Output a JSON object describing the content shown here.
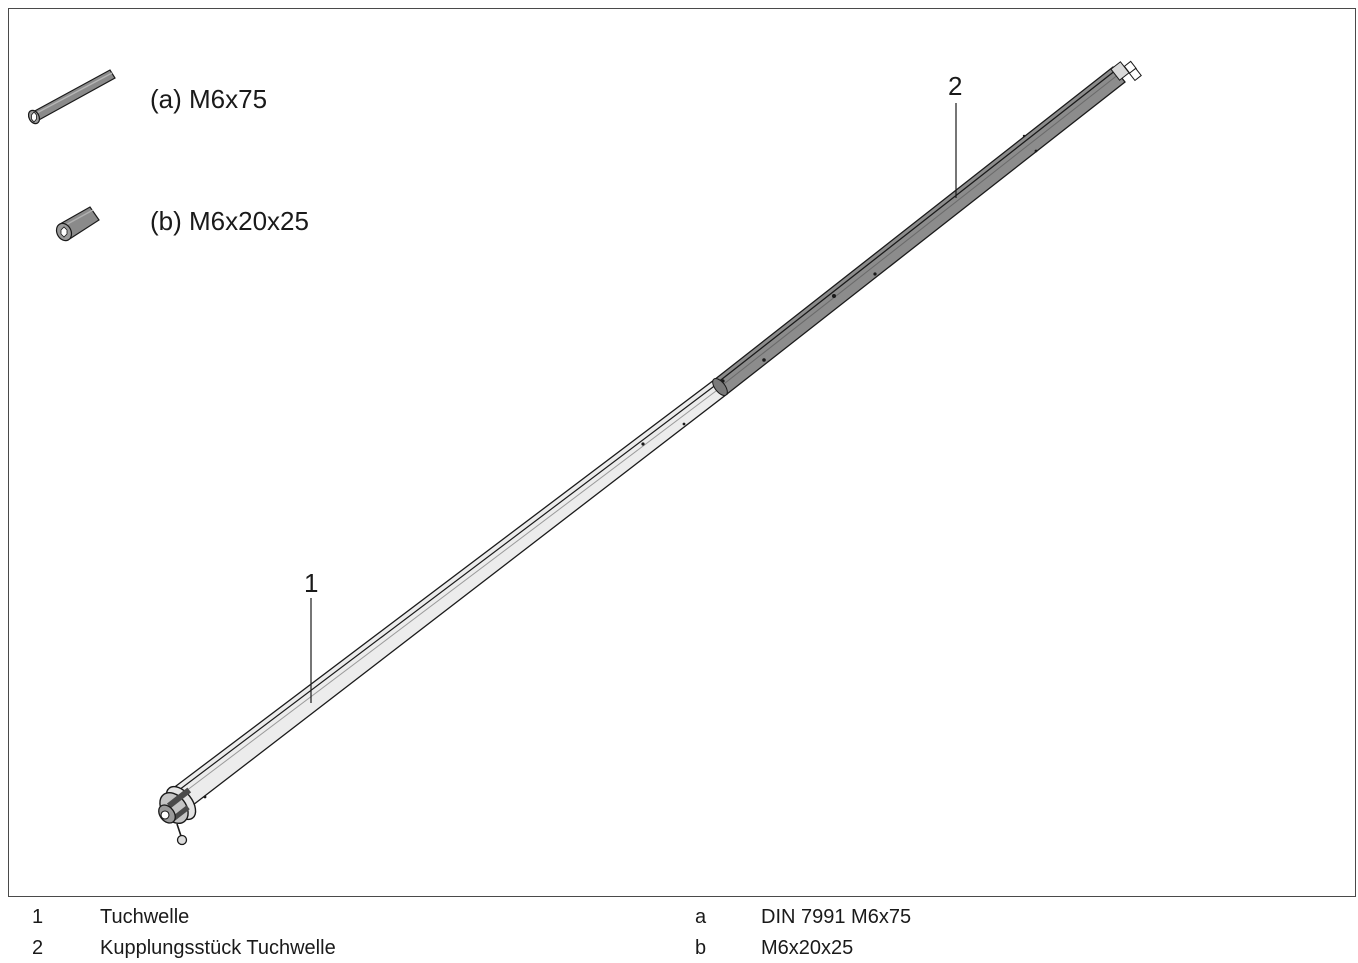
{
  "parts": {
    "a": {
      "label": "(a) M6x75"
    },
    "b": {
      "label": "(b) M6x20x25"
    }
  },
  "callouts": {
    "c1": "1",
    "c2": "2"
  },
  "legend": {
    "left": [
      {
        "key": "1",
        "text": "Tuchwelle"
      },
      {
        "key": "2",
        "text": "Kupplungsstück Tuchwelle"
      }
    ],
    "right": [
      {
        "key": "a",
        "text": "DIN 7991 M6x75"
      },
      {
        "key": "b",
        "text": "M6x20x25"
      }
    ]
  },
  "colors": {
    "tube_light": "#e9e9e9",
    "tube_dark": "#8a8a8a",
    "screw": "#808080",
    "outline": "#1a1a1a"
  }
}
